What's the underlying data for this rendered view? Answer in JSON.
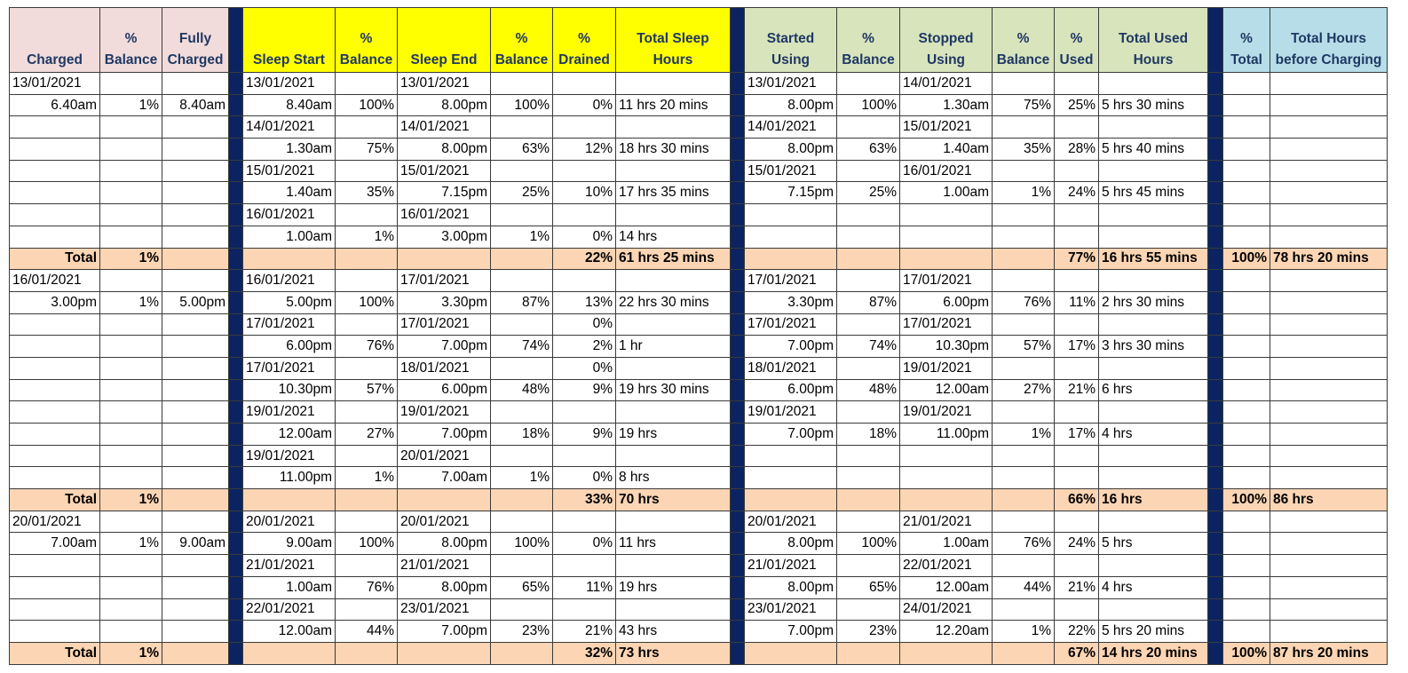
{
  "header": [
    "Charged",
    "%\nBalance",
    "Fully\nCharged",
    "Sleep Start",
    "%\nBalance",
    "Sleep End",
    "%\nBalance",
    "%\nDrained",
    "Total Sleep\nHours",
    "Started\nUsing",
    "%\nBalance",
    "Stopped\nUsing",
    "%\nBalance",
    "%\nUsed",
    "Total Used\nHours",
    "%\nTotal",
    "Total Hours\nbefore Charging"
  ],
  "blocks": [
    {
      "rows": [
        [
          "13/01/2021",
          null,
          null,
          "13/01/2021",
          null,
          "13/01/2021",
          null,
          null,
          null,
          "13/01/2021",
          null,
          "14/01/2021",
          null,
          null,
          null,
          null,
          null
        ],
        [
          "6.40am",
          "1%",
          "8.40am",
          "8.40am",
          "100%",
          "8.00pm",
          "100%",
          "0%",
          "11 hrs 20 mins",
          "8.00pm",
          "100%",
          "1.30am",
          "75%",
          "25%",
          "5 hrs 30 mins",
          null,
          null
        ],
        [
          null,
          null,
          null,
          "14/01/2021",
          null,
          "14/01/2021",
          null,
          null,
          null,
          "14/01/2021",
          null,
          "15/01/2021",
          null,
          null,
          null,
          null,
          null
        ],
        [
          null,
          null,
          null,
          "1.30am",
          "75%",
          "8.00pm",
          "63%",
          "12%",
          "18 hrs 30 mins",
          "8.00pm",
          "63%",
          "1.40am",
          "35%",
          "28%",
          "5 hrs 40 mins",
          null,
          null
        ],
        [
          null,
          null,
          null,
          "15/01/2021",
          null,
          "15/01/2021",
          null,
          null,
          null,
          "15/01/2021",
          null,
          "16/01/2021",
          null,
          null,
          null,
          null,
          null
        ],
        [
          null,
          null,
          null,
          "1.40am",
          "35%",
          "7.15pm",
          "25%",
          "10%",
          "17 hrs 35 mins",
          "7.15pm",
          "25%",
          "1.00am",
          "1%",
          "24%",
          "5 hrs 45 mins",
          null,
          null
        ],
        [
          null,
          null,
          null,
          "16/01/2021",
          null,
          "16/01/2021",
          null,
          null,
          null,
          null,
          null,
          null,
          null,
          null,
          null,
          null,
          null
        ],
        [
          null,
          null,
          null,
          "1.00am",
          "1%",
          "3.00pm",
          "1%",
          "0%",
          "14 hrs",
          null,
          null,
          null,
          null,
          null,
          null,
          null,
          null
        ]
      ],
      "total": [
        "Total",
        "1%",
        null,
        null,
        null,
        null,
        null,
        "22%",
        "61 hrs 25 mins",
        null,
        null,
        null,
        null,
        "77%",
        "16 hrs 55 mins",
        "100%",
        "78 hrs 20 mins"
      ]
    },
    {
      "rows": [
        [
          "16/01/2021",
          null,
          null,
          "16/01/2021",
          null,
          "17/01/2021",
          null,
          null,
          null,
          "17/01/2021",
          null,
          "17/01/2021",
          null,
          null,
          null,
          null,
          null
        ],
        [
          "3.00pm",
          "1%",
          "5.00pm",
          "5.00pm",
          "100%",
          "3.30pm",
          "87%",
          "13%",
          "22 hrs 30 mins",
          "3.30pm",
          "87%",
          "6.00pm",
          "76%",
          "11%",
          "2 hrs 30 mins",
          null,
          null
        ],
        [
          null,
          null,
          null,
          "17/01/2021",
          null,
          "17/01/2021",
          null,
          "0%",
          null,
          "17/01/2021",
          null,
          "17/01/2021",
          null,
          null,
          null,
          null,
          null
        ],
        [
          null,
          null,
          null,
          "6.00pm",
          "76%",
          "7.00pm",
          "74%",
          "2%",
          "1 hr",
          "7.00pm",
          "74%",
          "10.30pm",
          "57%",
          "17%",
          "3 hrs 30 mins",
          null,
          null
        ],
        [
          null,
          null,
          null,
          "17/01/2021",
          null,
          "18/01/2021",
          null,
          "0%",
          null,
          "18/01/2021",
          null,
          "19/01/2021",
          null,
          null,
          null,
          null,
          null
        ],
        [
          null,
          null,
          null,
          "10.30pm",
          "57%",
          "6.00pm",
          "48%",
          "9%",
          "19 hrs 30 mins",
          "6.00pm",
          "48%",
          "12.00am",
          "27%",
          "21%",
          "6 hrs",
          null,
          null
        ],
        [
          null,
          null,
          null,
          "19/01/2021",
          null,
          "19/01/2021",
          null,
          null,
          null,
          "19/01/2021",
          null,
          "19/01/2021",
          null,
          null,
          null,
          null,
          null
        ],
        [
          null,
          null,
          null,
          "12.00am",
          "27%",
          "7.00pm",
          "18%",
          "9%",
          "19 hrs",
          "7.00pm",
          "18%",
          "11.00pm",
          "1%",
          "17%",
          "4 hrs",
          null,
          null
        ],
        [
          null,
          null,
          null,
          "19/01/2021",
          null,
          "20/01/2021",
          null,
          null,
          null,
          null,
          null,
          null,
          null,
          null,
          null,
          null,
          null
        ],
        [
          null,
          null,
          null,
          "11.00pm",
          "1%",
          "7.00am",
          "1%",
          "0%",
          "8 hrs",
          null,
          null,
          null,
          null,
          null,
          null,
          null,
          null
        ]
      ],
      "total": [
        "Total",
        "1%",
        null,
        null,
        null,
        null,
        null,
        "33%",
        "70 hrs",
        null,
        null,
        null,
        null,
        "66%",
        "16 hrs",
        "100%",
        "86 hrs"
      ]
    },
    {
      "rows": [
        [
          "20/01/2021",
          null,
          null,
          "20/01/2021",
          null,
          "20/01/2021",
          null,
          null,
          null,
          "20/01/2021",
          null,
          "21/01/2021",
          null,
          null,
          null,
          null,
          null
        ],
        [
          "7.00am",
          "1%",
          "9.00am",
          "9.00am",
          "100%",
          "8.00pm",
          "100%",
          "0%",
          "11 hrs",
          "8.00pm",
          "100%",
          "1.00am",
          "76%",
          "24%",
          "5 hrs",
          null,
          null
        ],
        [
          null,
          null,
          null,
          "21/01/2021",
          null,
          "21/01/2021",
          null,
          null,
          null,
          "21/01/2021",
          null,
          "22/01/2021",
          null,
          null,
          null,
          null,
          null
        ],
        [
          null,
          null,
          null,
          "1.00am",
          "76%",
          "8.00pm",
          "65%",
          "11%",
          "19 hrs",
          "8.00pm",
          "65%",
          "12.00am",
          "44%",
          "21%",
          "4 hrs",
          null,
          null
        ],
        [
          null,
          null,
          null,
          "22/01/2021",
          null,
          "23/01/2021",
          null,
          null,
          null,
          "23/01/2021",
          null,
          "24/01/2021",
          null,
          null,
          null,
          null,
          null
        ],
        [
          null,
          null,
          null,
          "12.00am",
          "44%",
          "7.00pm",
          "23%",
          "21%",
          "43 hrs",
          "7.00pm",
          "23%",
          "12.20am",
          "1%",
          "22%",
          "5 hrs 20 mins",
          null,
          null
        ]
      ],
      "total": [
        "Total",
        "1%",
        null,
        null,
        null,
        null,
        null,
        "32%",
        "73 hrs",
        null,
        null,
        null,
        null,
        "67%",
        "14 hrs 20 mins",
        "100%",
        "87 hrs 20 mins"
      ]
    }
  ]
}
